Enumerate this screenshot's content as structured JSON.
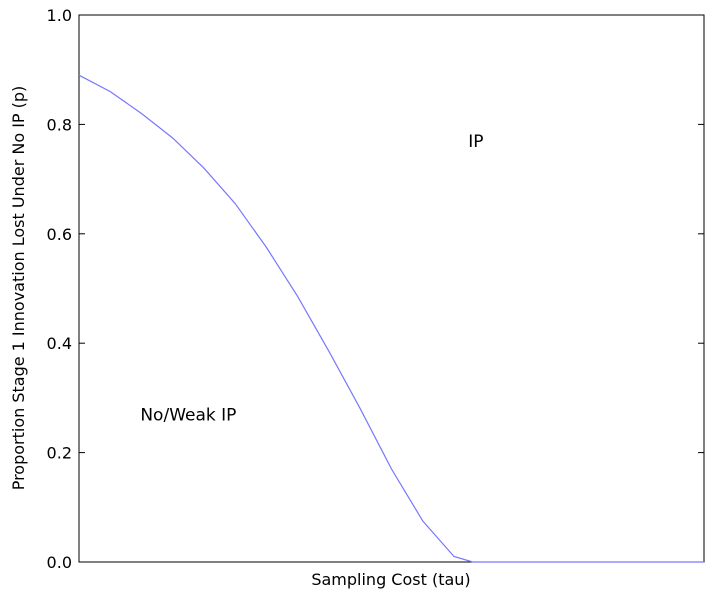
{
  "chart_data": {
    "type": "line",
    "title": "",
    "xlabel": "Sampling Cost (tau)",
    "ylabel": "Proportion Stage 1 Innovation Lost Under No IP (p)",
    "xlim": [
      0,
      1
    ],
    "ylim": [
      0,
      1
    ],
    "x_ticks_shown": false,
    "y_ticks": [
      0.0,
      0.2,
      0.4,
      0.6,
      0.8,
      1.0
    ],
    "y_tick_labels": [
      "0.0",
      "0.2",
      "0.4",
      "0.6",
      "0.8",
      "1.0"
    ],
    "grid": false,
    "legend": "none",
    "series": [
      {
        "color": "#7777ff",
        "x": [
          0.0,
          0.05,
          0.1,
          0.15,
          0.2,
          0.25,
          0.3,
          0.35,
          0.4,
          0.45,
          0.5,
          0.55,
          0.6,
          0.63,
          0.65,
          0.67,
          0.7,
          0.8,
          0.9,
          1.0
        ],
        "y": [
          0.89,
          0.86,
          0.82,
          0.775,
          0.72,
          0.655,
          0.575,
          0.485,
          0.385,
          0.28,
          0.17,
          0.075,
          0.01,
          0.0,
          0.0,
          0.0,
          0.0,
          0.0,
          0.0,
          0.0
        ]
      }
    ],
    "annotations": [
      {
        "text": "IP",
        "x": 0.635,
        "y": 0.77
      },
      {
        "text": "No/Weak IP",
        "x": 0.175,
        "y": 0.27
      }
    ]
  }
}
